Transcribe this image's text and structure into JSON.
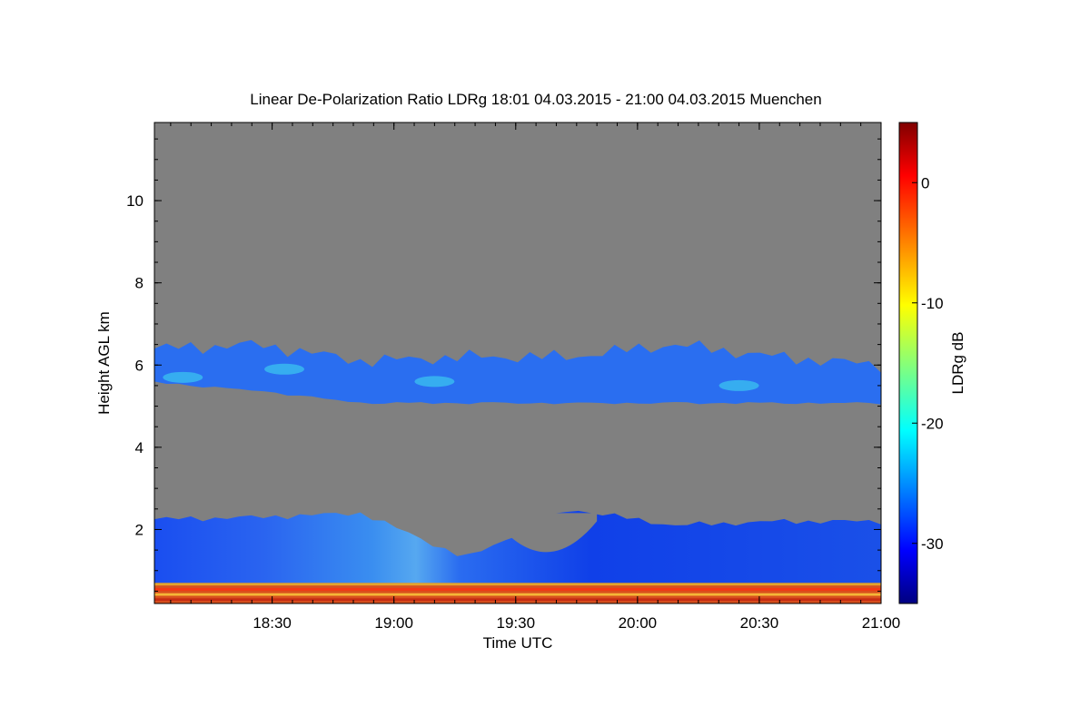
{
  "chart_data": {
    "type": "heatmap",
    "title": "Linear De-Polarization Ratio LDRg   18:01 04.03.2015 - 21:00 04.03.2015 Muenchen",
    "xlabel": "Time UTC",
    "ylabel": "Height AGL km",
    "colorbar_label": "LDRg dB",
    "x_range": [
      "18:01",
      "21:00"
    ],
    "y_range": [
      0.2,
      11.9
    ],
    "x_ticks": [
      "18:30",
      "19:00",
      "19:30",
      "20:00",
      "20:30",
      "21:00"
    ],
    "y_ticks": [
      2,
      4,
      6,
      8,
      10
    ],
    "color_range": [
      -35,
      5
    ],
    "colorbar_ticks": [
      0,
      -10,
      -20,
      -30
    ],
    "background_color": "#808080",
    "layers": [
      {
        "layer": "cirrus band",
        "x_start": "18:01",
        "x_end": "21:00",
        "base_km": [
          5.6,
          5.4,
          5.1,
          5.1,
          5.1,
          5.1,
          5.1,
          5.1
        ],
        "top_km": [
          6.4,
          6.5,
          6.1,
          6.2,
          6.2,
          6.5,
          6.2,
          6.0
        ],
        "ldr_db": [
          -25,
          -18
        ]
      },
      {
        "layer": "boundary layer aerosol",
        "x_start": "18:01",
        "x_end": "21:00",
        "base_km": 0.2,
        "top_km": [
          2.25,
          2.3,
          2.4,
          1.3,
          2.5,
          2.1,
          2.2,
          2.2
        ],
        "ldr_db": [
          -32,
          -22
        ]
      },
      {
        "layer": "near-surface high LDR",
        "base_km": 0.2,
        "top_km": 0.7,
        "ldr_db": [
          -10,
          0
        ]
      }
    ]
  }
}
